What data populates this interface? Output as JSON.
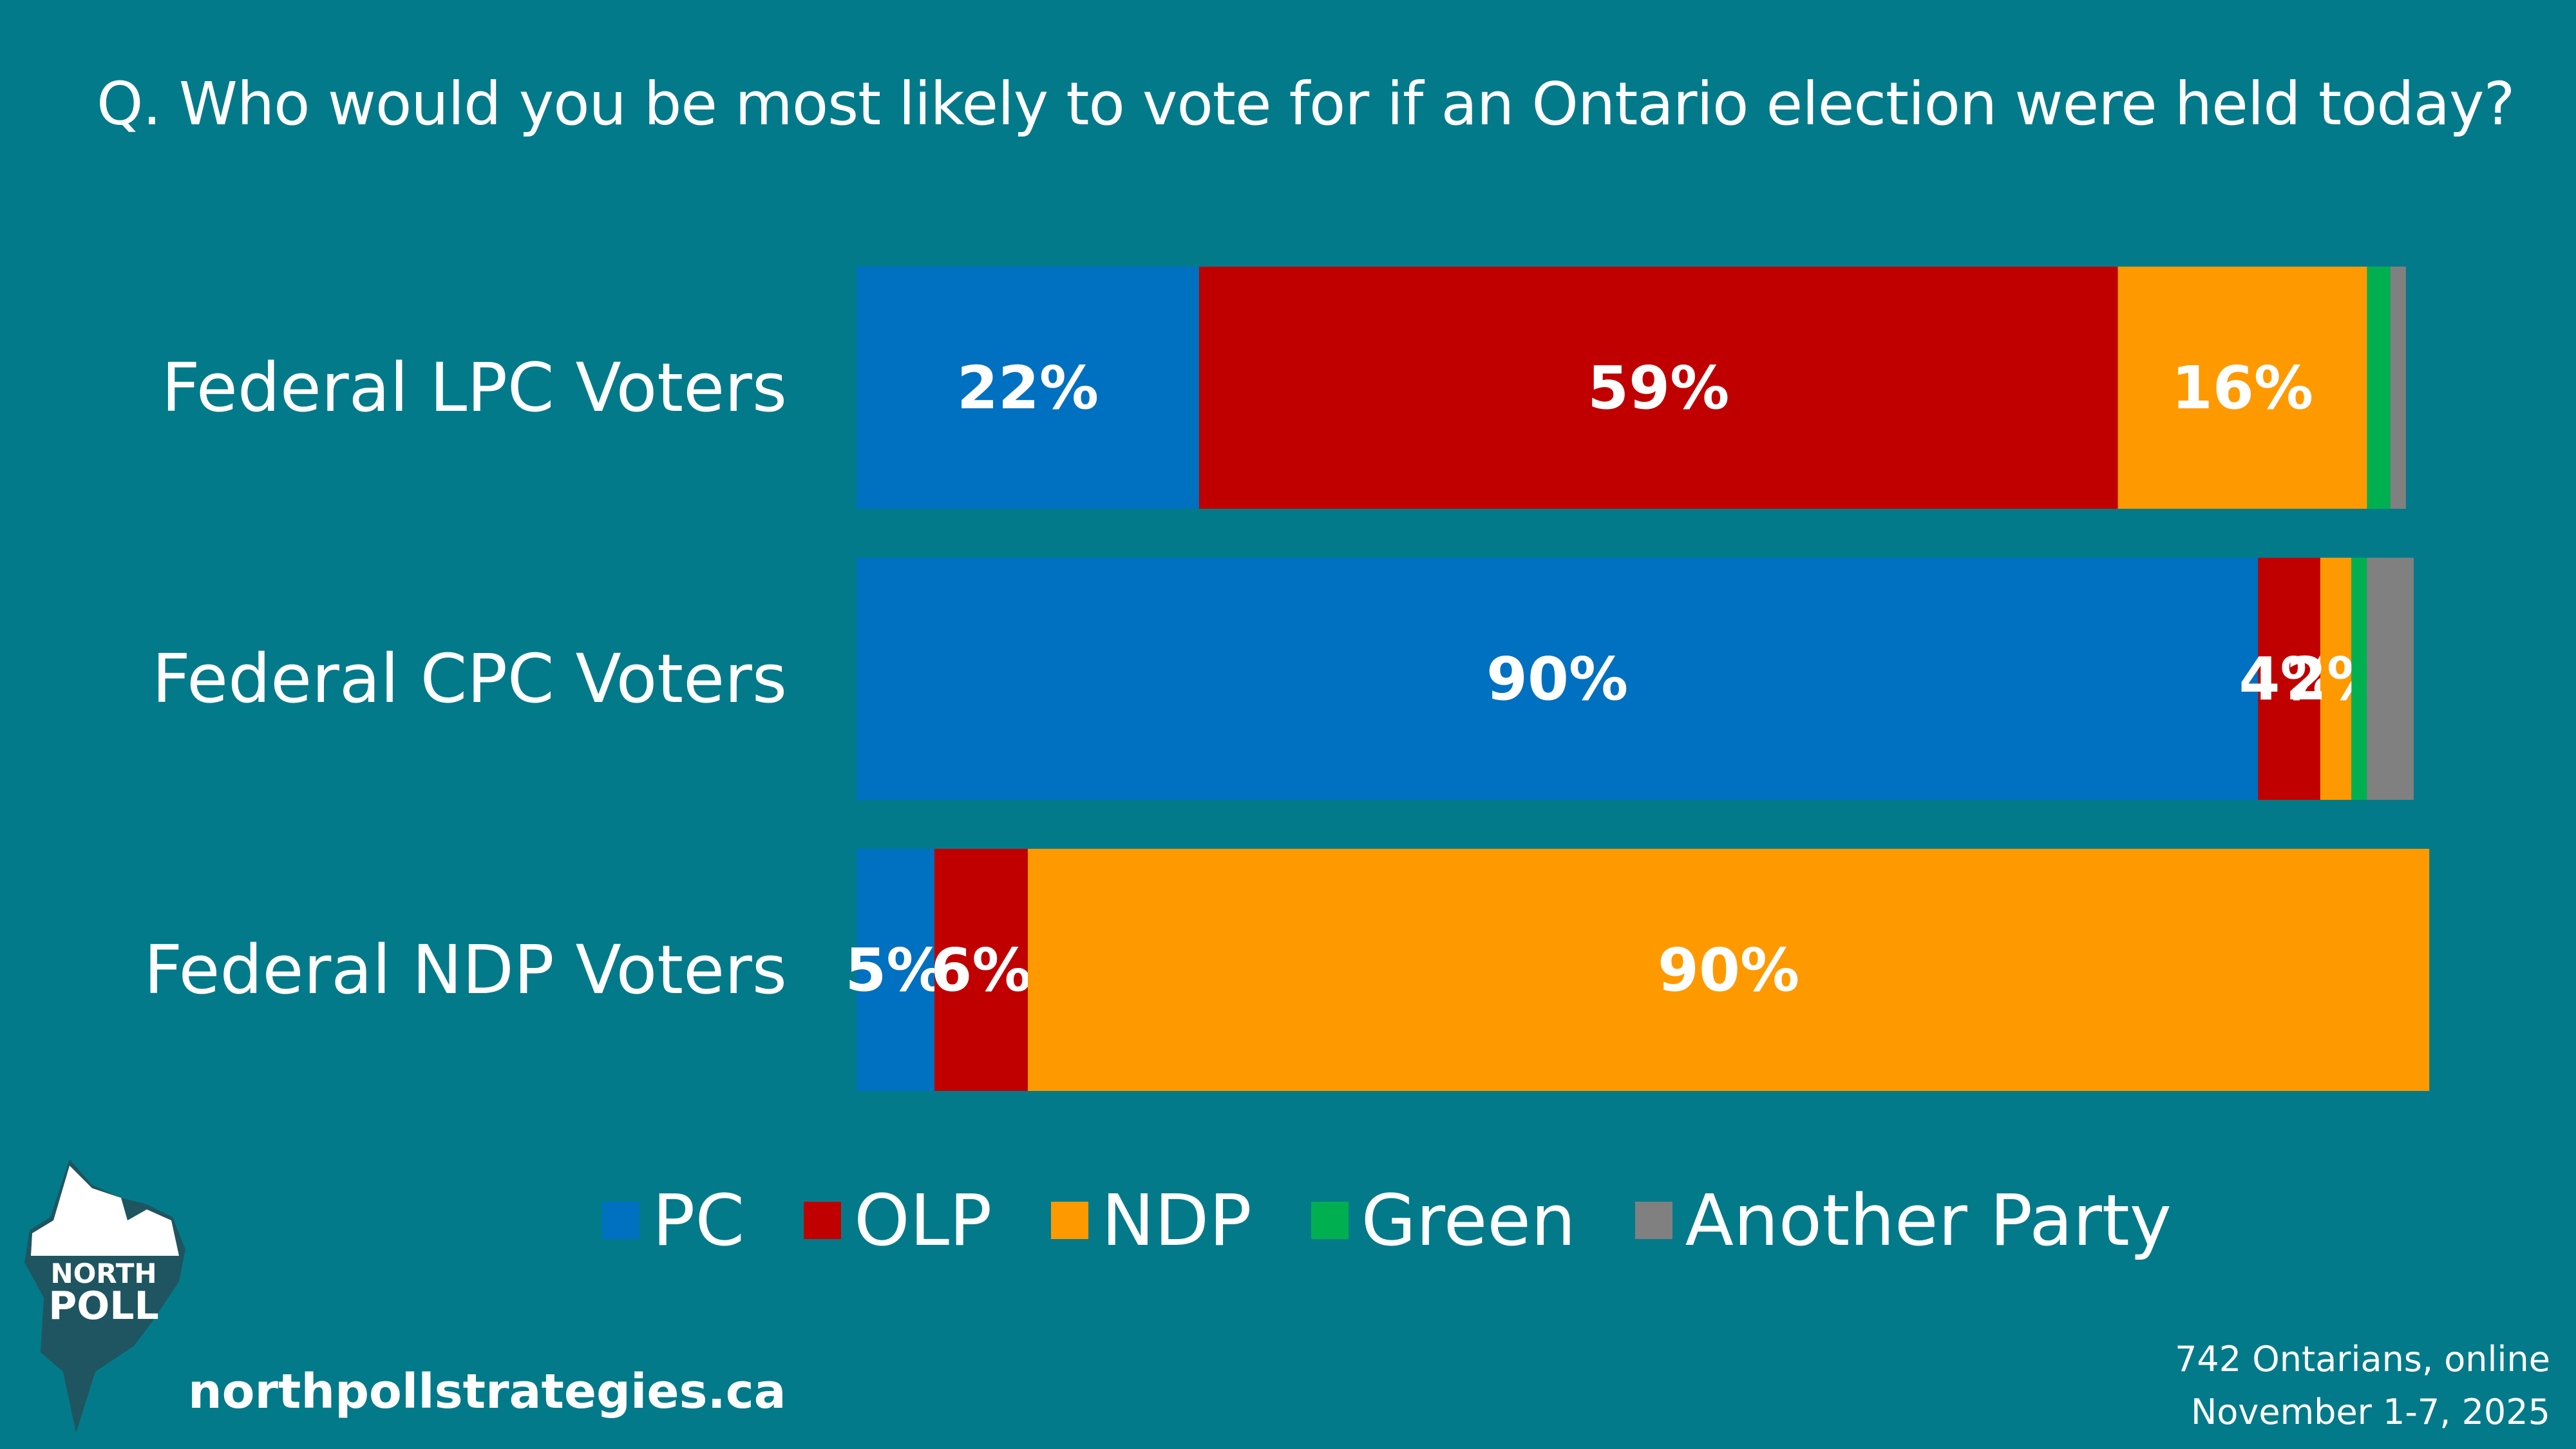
{
  "question": "Q. Who would you be most likely to vote for if an Ontario election were held today?",
  "colors": {
    "background": "#037a8a",
    "PC": "#0070c0",
    "OLP": "#c00000",
    "NDP": "#ff9900",
    "Green": "#00b050",
    "Another Party": "#808080"
  },
  "chart_data": {
    "type": "bar",
    "orientation": "horizontal",
    "stacked": true,
    "categories": [
      "Federal LPC Voters",
      "Federal CPC Voters",
      "Federal NDP Voters"
    ],
    "series": [
      {
        "name": "PC",
        "values": [
          22,
          90,
          5
        ],
        "labels": [
          "22%",
          "90%",
          "5%"
        ]
      },
      {
        "name": "OLP",
        "values": [
          59,
          4,
          6
        ],
        "labels": [
          "59%",
          "4%",
          "6%"
        ]
      },
      {
        "name": "NDP",
        "values": [
          16,
          2,
          90
        ],
        "labels": [
          "16%",
          "2%",
          "90%"
        ]
      },
      {
        "name": "Green",
        "values": [
          1.5,
          1,
          0
        ],
        "labels": [
          "",
          "",
          ""
        ]
      },
      {
        "name": "Another Party",
        "values": [
          1,
          3,
          0
        ],
        "labels": [
          "",
          "",
          ""
        ]
      }
    ],
    "xlim": [
      0,
      100
    ],
    "legend": "bottom"
  },
  "legend_items": [
    "PC",
    "OLP",
    "NDP",
    "Green",
    "Another Party"
  ],
  "logo": {
    "line1": "NORTH",
    "line2": "POLL"
  },
  "website": "northpollstrategies.ca",
  "footnote": {
    "line1": "742 Ontarians, online",
    "line2": "November 1-7, 2025"
  }
}
